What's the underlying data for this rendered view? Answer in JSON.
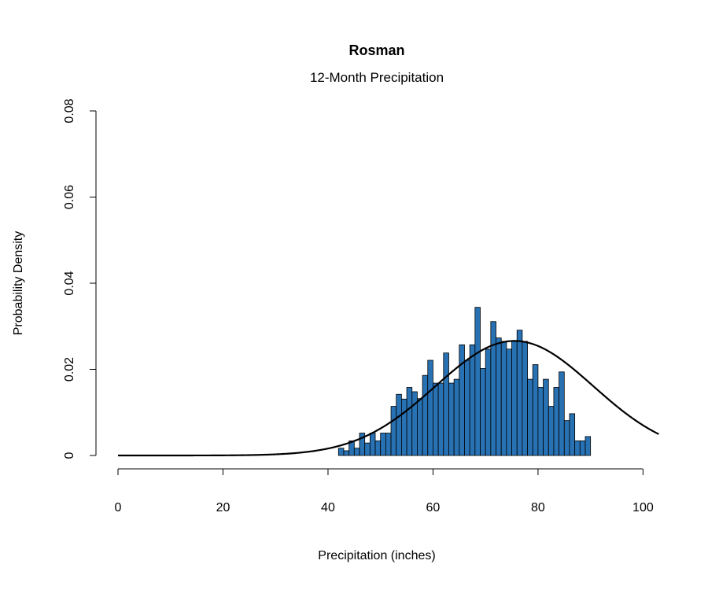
{
  "chart_data": {
    "type": "bar",
    "title": "Rosman",
    "subtitle": "12-Month Precipitation",
    "xlabel": "Precipitation (inches)",
    "ylabel": "Probability Density",
    "xlim": [
      0,
      103
    ],
    "ylim": [
      0,
      0.08
    ],
    "xticks": [
      "0",
      "20",
      "40",
      "60",
      "80",
      "100"
    ],
    "yticks": [
      "0",
      "0.02",
      "0.04",
      "0.06",
      "0.08"
    ],
    "bar_color": "#2872b4",
    "bin_width": 1,
    "bins_start": 42,
    "values": [
      0.0017,
      0.0011,
      0.0034,
      0.0017,
      0.0052,
      0.0029,
      0.0052,
      0.0034,
      0.0052,
      0.0052,
      0.0114,
      0.0142,
      0.0131,
      0.0158,
      0.0148,
      0.0132,
      0.0186,
      0.0221,
      0.0168,
      0.0168,
      0.0238,
      0.0168,
      0.0177,
      0.0257,
      0.0221,
      0.0257,
      0.0344,
      0.0202,
      0.0247,
      0.0311,
      0.0273,
      0.0265,
      0.0247,
      0.0265,
      0.0291,
      0.0265,
      0.0177,
      0.0211,
      0.0158,
      0.0177,
      0.0114,
      0.0158,
      0.0194,
      0.0081,
      0.0097,
      0.0034,
      0.0034,
      0.0044
    ],
    "normal_curve": {
      "mean": 75.5,
      "sd": 15.0
    }
  }
}
